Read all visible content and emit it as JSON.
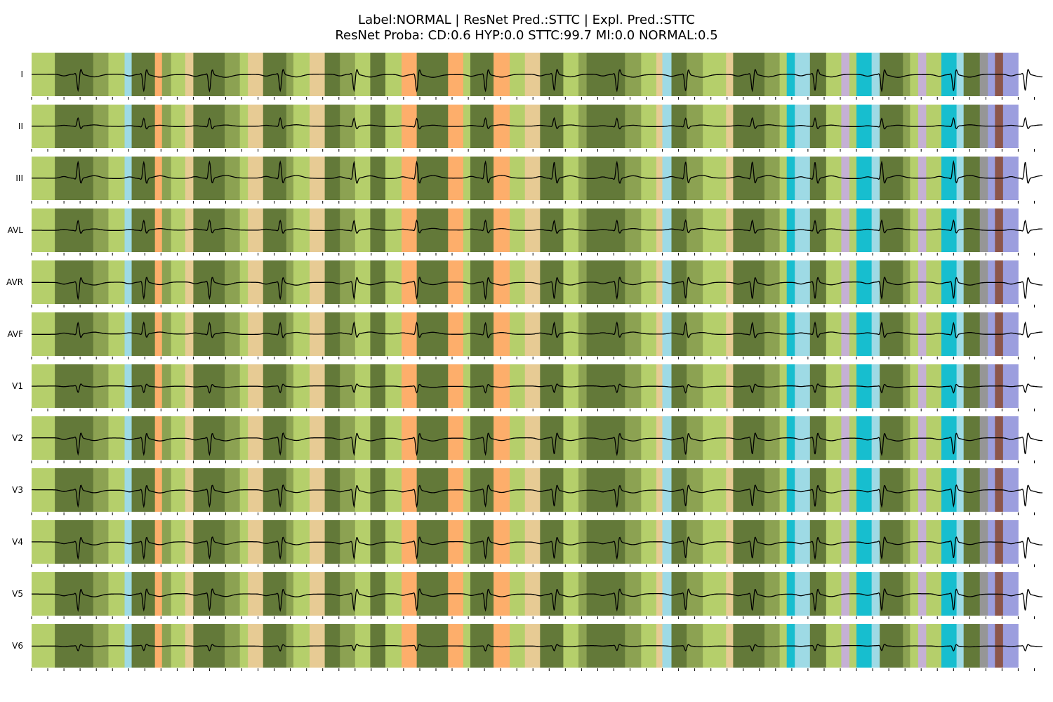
{
  "chart_data": {
    "type": "ecg-explanation-heatmap",
    "title_line1": "Label:NORMAL | ResNet Pred.:STTC | Expl. Pred.:STTC",
    "title_line2": "ResNet Proba: CD:0.6 HYP:0.0 STTC:99.7 MI:0.0 NORMAL:0.5",
    "label": "NORMAL",
    "resnet_prediction": "STTC",
    "explanation_prediction": "STTC",
    "resnet_proba": {
      "CD": 0.6,
      "HYP": 0.0,
      "STTC": 99.7,
      "MI": 0.0,
      "NORMAL": 0.5
    },
    "leads": [
      "I",
      "II",
      "III",
      "AVL",
      "AVR",
      "AVF",
      "V1",
      "V2",
      "V3",
      "V4",
      "V5",
      "V6"
    ],
    "lead_polarity": [
      -1,
      0.5,
      1,
      0.6,
      -1,
      0.7,
      -0.4,
      -1,
      -1,
      -1,
      -1,
      -0.3
    ],
    "x_range": [
      0,
      1000
    ],
    "x_ticks": [
      0,
      16,
      32,
      48,
      64,
      80,
      96,
      112,
      128,
      144,
      160,
      176,
      192,
      208,
      224,
      240,
      256,
      272,
      288,
      304,
      320,
      336,
      352,
      368,
      384,
      400,
      416,
      432,
      448,
      464,
      480,
      496,
      512,
      528,
      544,
      560,
      576,
      592,
      608,
      624,
      640,
      656,
      672,
      688,
      704,
      720,
      736,
      752,
      768,
      784,
      800,
      816,
      832,
      848,
      864,
      880,
      896,
      912,
      928,
      944,
      960,
      976,
      992
    ],
    "beat_positions": [
      46,
      111,
      176,
      246,
      319,
      381,
      449,
      517,
      579,
      647,
      713,
      775,
      841,
      912,
      983
    ],
    "segments": [
      {
        "start": 0,
        "end": 23,
        "color": "#b5cf6b"
      },
      {
        "start": 23,
        "end": 61,
        "color": "#637939"
      },
      {
        "start": 61,
        "end": 76,
        "color": "#8ca252"
      },
      {
        "start": 76,
        "end": 92,
        "color": "#b5cf6b"
      },
      {
        "start": 92,
        "end": 99,
        "color": "#9edae5"
      },
      {
        "start": 99,
        "end": 122,
        "color": "#637939"
      },
      {
        "start": 122,
        "end": 129,
        "color": "#fdae6b"
      },
      {
        "start": 129,
        "end": 138,
        "color": "#8ca252"
      },
      {
        "start": 138,
        "end": 152,
        "color": "#b5cf6b"
      },
      {
        "start": 152,
        "end": 160,
        "color": "#e7cb94"
      },
      {
        "start": 160,
        "end": 191,
        "color": "#637939"
      },
      {
        "start": 191,
        "end": 206,
        "color": "#8ca252"
      },
      {
        "start": 206,
        "end": 214,
        "color": "#b5cf6b"
      },
      {
        "start": 214,
        "end": 229,
        "color": "#e7cb94"
      },
      {
        "start": 229,
        "end": 252,
        "color": "#637939"
      },
      {
        "start": 252,
        "end": 259,
        "color": "#8ca252"
      },
      {
        "start": 259,
        "end": 275,
        "color": "#b5cf6b"
      },
      {
        "start": 275,
        "end": 290,
        "color": "#e7cb94"
      },
      {
        "start": 290,
        "end": 305,
        "color": "#637939"
      },
      {
        "start": 305,
        "end": 320,
        "color": "#8ca252"
      },
      {
        "start": 320,
        "end": 335,
        "color": "#b5cf6b"
      },
      {
        "start": 335,
        "end": 350,
        "color": "#637939"
      },
      {
        "start": 350,
        "end": 366,
        "color": "#b5cf6b"
      },
      {
        "start": 366,
        "end": 381,
        "color": "#fdae6b"
      },
      {
        "start": 381,
        "end": 412,
        "color": "#637939"
      },
      {
        "start": 412,
        "end": 427,
        "color": "#fdae6b"
      },
      {
        "start": 427,
        "end": 434,
        "color": "#b5cf6b"
      },
      {
        "start": 434,
        "end": 457,
        "color": "#637939"
      },
      {
        "start": 457,
        "end": 473,
        "color": "#fdae6b"
      },
      {
        "start": 473,
        "end": 488,
        "color": "#b5cf6b"
      },
      {
        "start": 488,
        "end": 503,
        "color": "#e7cb94"
      },
      {
        "start": 503,
        "end": 526,
        "color": "#637939"
      },
      {
        "start": 526,
        "end": 541,
        "color": "#b5cf6b"
      },
      {
        "start": 541,
        "end": 549,
        "color": "#8ca252"
      },
      {
        "start": 549,
        "end": 587,
        "color": "#637939"
      },
      {
        "start": 587,
        "end": 603,
        "color": "#8ca252"
      },
      {
        "start": 603,
        "end": 618,
        "color": "#b5cf6b"
      },
      {
        "start": 618,
        "end": 624,
        "color": "#e7cb94"
      },
      {
        "start": 624,
        "end": 633,
        "color": "#9edae5"
      },
      {
        "start": 633,
        "end": 648,
        "color": "#637939"
      },
      {
        "start": 648,
        "end": 664,
        "color": "#8ca252"
      },
      {
        "start": 664,
        "end": 687,
        "color": "#b5cf6b"
      },
      {
        "start": 687,
        "end": 694,
        "color": "#e7cb94"
      },
      {
        "start": 694,
        "end": 725,
        "color": "#637939"
      },
      {
        "start": 725,
        "end": 740,
        "color": "#8ca252"
      },
      {
        "start": 740,
        "end": 747,
        "color": "#b5cf6b"
      },
      {
        "start": 747,
        "end": 755,
        "color": "#17becf"
      },
      {
        "start": 755,
        "end": 770,
        "color": "#9edae5"
      },
      {
        "start": 770,
        "end": 786,
        "color": "#637939"
      },
      {
        "start": 786,
        "end": 801,
        "color": "#b5cf6b"
      },
      {
        "start": 801,
        "end": 809,
        "color": "#c5b0d5"
      },
      {
        "start": 809,
        "end": 816,
        "color": "#b5cf6b"
      },
      {
        "start": 816,
        "end": 831,
        "color": "#17becf"
      },
      {
        "start": 831,
        "end": 839,
        "color": "#9edae5"
      },
      {
        "start": 839,
        "end": 862,
        "color": "#637939"
      },
      {
        "start": 862,
        "end": 869,
        "color": "#8ca252"
      },
      {
        "start": 869,
        "end": 877,
        "color": "#b5cf6b"
      },
      {
        "start": 877,
        "end": 885,
        "color": "#c5b0d5"
      },
      {
        "start": 885,
        "end": 900,
        "color": "#b5cf6b"
      },
      {
        "start": 900,
        "end": 915,
        "color": "#17becf"
      },
      {
        "start": 915,
        "end": 922,
        "color": "#9edae5"
      },
      {
        "start": 922,
        "end": 938,
        "color": "#637939"
      },
      {
        "start": 938,
        "end": 946,
        "color": "#969696"
      },
      {
        "start": 946,
        "end": 953,
        "color": "#9c9ede"
      },
      {
        "start": 953,
        "end": 961,
        "color": "#8c564b"
      },
      {
        "start": 961,
        "end": 976,
        "color": "#9c9ede"
      }
    ]
  }
}
